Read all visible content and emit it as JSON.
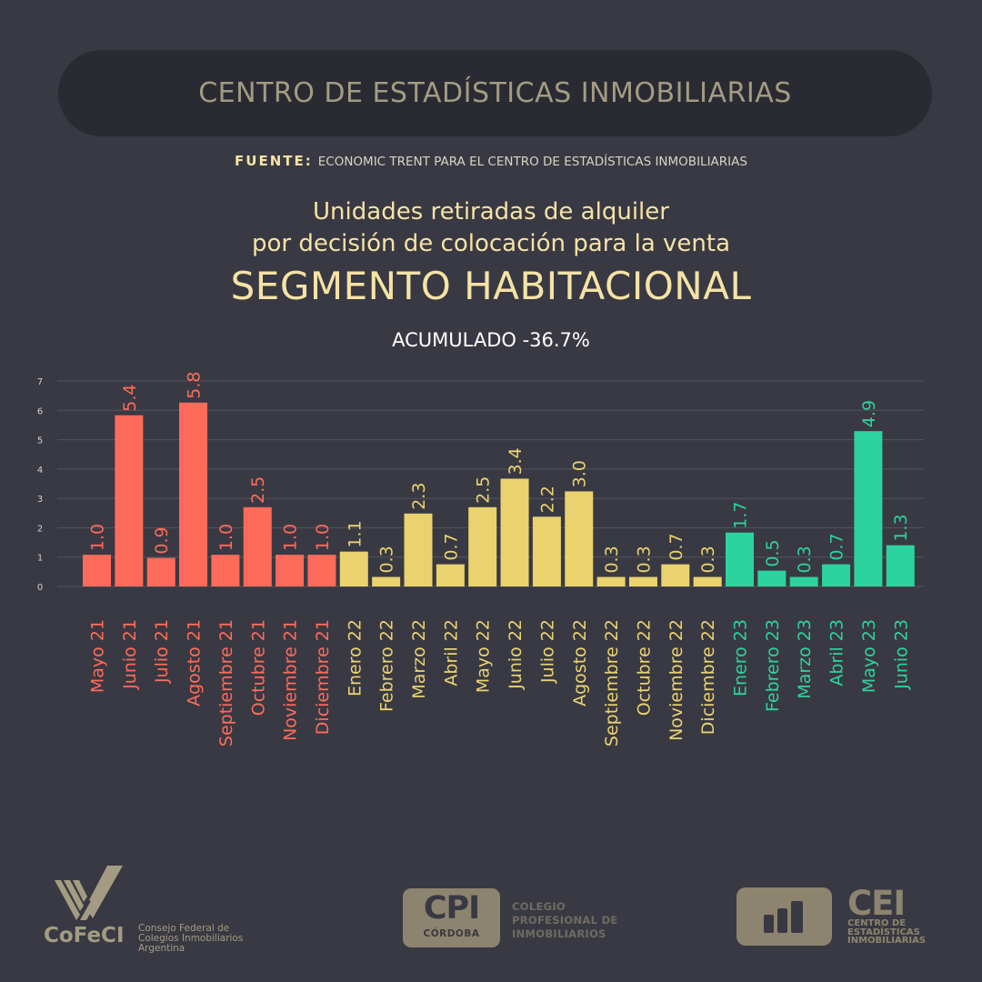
{
  "header": {
    "title": "CENTRO DE ESTADÍSTICAS INMOBILIARIAS"
  },
  "source": {
    "label": "FUENTE:",
    "text": "ECONOMIC TRENT PARA EL CENTRO DE ESTADÍSTICAS INMOBILIARIAS"
  },
  "titles": {
    "line1": "Unidades retiradas de alquiler",
    "line2": "por decisión de colocación para la venta",
    "main": "SEGMENTO HABITACIONAL",
    "subtitle": "ACUMULADO -36.7%"
  },
  "colors": {
    "y2021": "#ff6b5a",
    "y2022": "#ead36f",
    "y2023": "#2dd39e",
    "background": "#393943",
    "gridline": "#54545e"
  },
  "chart_data": {
    "type": "bar",
    "title": "Unidades retiradas de alquiler por decisión de colocación para la venta — SEGMENTO HABITACIONAL",
    "subtitle": "ACUMULADO -36.7%",
    "xlabel": "",
    "ylabel": "",
    "ylim": [
      0,
      7
    ],
    "yticks": [
      0,
      1,
      2,
      3,
      4,
      5,
      6,
      7
    ],
    "grid": true,
    "legend": "none",
    "categories": [
      "Mayo 21",
      "Junio 21",
      "Julio 21",
      "Agosto 21",
      "Septiembre 21",
      "Octubre 21",
      "Noviembre 21",
      "Diciembre 21",
      "Enero 22",
      "Febrero 22",
      "Marzo 22",
      "Abril 22",
      "Mayo 22",
      "Junio 22",
      "Julio 22",
      "Agosto 22",
      "Septiembre 22",
      "Octubre 22",
      "Noviembre 22",
      "Diciembre 22",
      "Enero 23",
      "Febrero 23",
      "Marzo 23",
      "Abril 23",
      "Mayo 23",
      "Junio 23"
    ],
    "values": [
      1.0,
      5.4,
      0.9,
      5.8,
      1.0,
      2.5,
      1.0,
      1.0,
      1.1,
      0.3,
      2.3,
      0.7,
      2.5,
      3.4,
      2.2,
      3.0,
      0.3,
      0.3,
      0.7,
      0.3,
      1.7,
      0.5,
      0.3,
      0.7,
      4.9,
      1.3
    ],
    "value_labels": [
      "1.0",
      "5.4",
      "0.9",
      "5.8",
      "1.0",
      "2.5",
      "1.0",
      "1.0",
      "1.1",
      "0.3",
      "2.3",
      "0.7",
      "2.5",
      "3.4",
      "2.2",
      "3.0",
      "0.3",
      "0.3",
      "0.7",
      "0.3",
      "1.7",
      "0.5",
      "0.3",
      "0.7",
      "4.9",
      "1.3"
    ],
    "groups": [
      "2021",
      "2021",
      "2021",
      "2021",
      "2021",
      "2021",
      "2021",
      "2021",
      "2022",
      "2022",
      "2022",
      "2022",
      "2022",
      "2022",
      "2022",
      "2022",
      "2022",
      "2022",
      "2022",
      "2022",
      "2023",
      "2023",
      "2023",
      "2023",
      "2023",
      "2023"
    ]
  },
  "footer": {
    "cofeci": {
      "name": "CoFeCI",
      "desc_lines": [
        "Consejo Federal de",
        "Colegios Inmobiliarios",
        "Argentina"
      ]
    },
    "cpi": {
      "name": "CPI",
      "city": "CÓRDOBA",
      "desc_lines": [
        "COLEGIO",
        "PROFESIONAL DE",
        "INMOBILIARIOS"
      ]
    },
    "cei": {
      "name": "CEI",
      "desc_lines": [
        "CENTRO DE",
        "ESTADÍSTICAS",
        "INMOBILIARIAS"
      ]
    }
  }
}
